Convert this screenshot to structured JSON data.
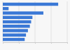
{
  "chart_data": {
    "type": "bar",
    "orientation": "horizontal",
    "categories": [
      null,
      null,
      null,
      null,
      null,
      null,
      null,
      null,
      null
    ],
    "values": [
      86,
      9,
      63,
      46,
      44,
      42,
      39,
      36,
      34
    ],
    "color": "#3a78d6",
    "xlim": [
      0,
      100
    ],
    "xticks": [
      0,
      25,
      50,
      75,
      100
    ],
    "grid": true,
    "tick_labels": false
  }
}
